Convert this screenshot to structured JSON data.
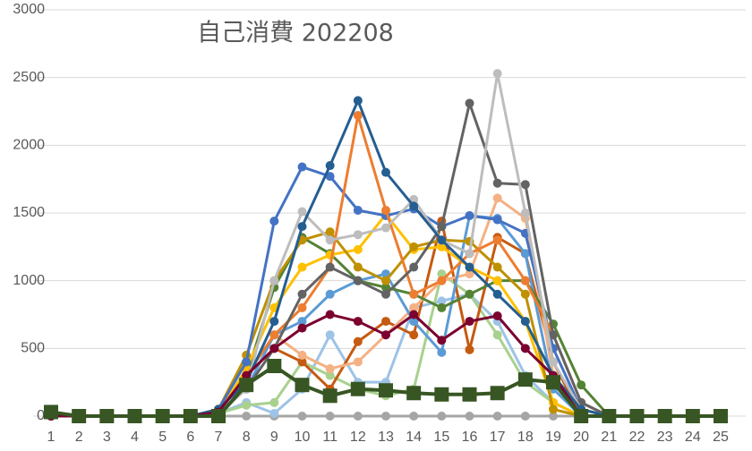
{
  "chart_data": {
    "type": "line",
    "title": "自己消費 202208",
    "x": [
      1,
      2,
      3,
      4,
      5,
      6,
      7,
      8,
      9,
      10,
      11,
      12,
      13,
      14,
      15,
      16,
      17,
      18,
      19,
      20,
      21,
      22,
      23,
      24,
      25
    ],
    "xlim": [
      1,
      25
    ],
    "xticks": [
      1,
      2,
      3,
      4,
      5,
      6,
      7,
      8,
      9,
      10,
      11,
      12,
      13,
      14,
      15,
      16,
      17,
      18,
      19,
      20,
      21,
      22,
      23,
      24,
      25
    ],
    "ylim": [
      0,
      3000
    ],
    "yticks": [
      0,
      500,
      1000,
      1500,
      2000,
      2500,
      3000
    ],
    "grid": true,
    "series": [
      {
        "color": "#a5a5a5",
        "marker": "circle",
        "values": [
          0,
          0,
          0,
          0,
          0,
          0,
          0,
          0,
          0,
          0,
          0,
          0,
          0,
          0,
          0,
          0,
          0,
          0,
          0,
          0,
          null,
          null,
          null,
          null,
          null
        ]
      },
      {
        "color": "#9dc3e6",
        "marker": "circle",
        "values": [
          0,
          0,
          0,
          0,
          0,
          0,
          20,
          100,
          20,
          200,
          600,
          250,
          250,
          800,
          850,
          900,
          700,
          300,
          100,
          0,
          null,
          null,
          null,
          null,
          null
        ]
      },
      {
        "color": "#a9d18e",
        "marker": "circle",
        "values": [
          0,
          0,
          0,
          0,
          0,
          0,
          20,
          80,
          100,
          400,
          300,
          200,
          150,
          200,
          1050,
          900,
          600,
          250,
          100,
          0,
          null,
          null,
          null,
          null,
          null
        ]
      },
      {
        "color": "#c55a11",
        "marker": "circle",
        "values": [
          0,
          0,
          0,
          0,
          0,
          0,
          30,
          300,
          500,
          400,
          200,
          550,
          700,
          600,
          1440,
          490,
          1320,
          1200,
          400,
          0,
          null,
          null,
          null,
          null,
          null
        ]
      },
      {
        "color": "#f4b183",
        "marker": "circle",
        "values": [
          0,
          0,
          0,
          0,
          0,
          0,
          20,
          300,
          600,
          450,
          350,
          400,
          600,
          800,
          1000,
          1050,
          1610,
          1460,
          300,
          0,
          null,
          null,
          null,
          null,
          null
        ]
      },
      {
        "color": "#5b9bd5",
        "marker": "circle",
        "values": [
          0,
          0,
          0,
          0,
          0,
          0,
          30,
          200,
          600,
          700,
          900,
          1000,
          1050,
          700,
          470,
          1480,
          1460,
          1200,
          200,
          0,
          null,
          null,
          null,
          null,
          null
        ]
      },
      {
        "color": "#548235",
        "marker": "circle",
        "values": [
          0,
          0,
          0,
          0,
          0,
          0,
          30,
          300,
          950,
          1320,
          1200,
          1000,
          950,
          900,
          800,
          900,
          1000,
          1000,
          680,
          230,
          0,
          null,
          null,
          null,
          null
        ]
      },
      {
        "color": "#ffc000",
        "marker": "circle",
        "values": [
          0,
          0,
          0,
          0,
          0,
          0,
          20,
          350,
          800,
          1100,
          1190,
          1230,
          1490,
          1230,
          1250,
          1100,
          1000,
          700,
          100,
          0,
          null,
          null,
          null,
          null,
          null
        ]
      },
      {
        "color": "#bf9000",
        "marker": "circle",
        "values": [
          0,
          0,
          0,
          0,
          0,
          0,
          50,
          450,
          1000,
          1300,
          1360,
          1100,
          1000,
          1250,
          1300,
          1290,
          1100,
          900,
          50,
          0,
          null,
          null,
          null,
          null,
          null
        ]
      },
      {
        "color": "#4472c4",
        "marker": "circle",
        "values": [
          0,
          0,
          0,
          0,
          0,
          0,
          50,
          400,
          1440,
          1840,
          1770,
          1520,
          1480,
          1530,
          1400,
          1480,
          1450,
          1350,
          500,
          50,
          0,
          null,
          null,
          null,
          null
        ]
      },
      {
        "color": "#ed7d31",
        "marker": "circle",
        "values": [
          0,
          0,
          0,
          0,
          0,
          0,
          30,
          300,
          600,
          800,
          1100,
          2220,
          1520,
          900,
          1000,
          1200,
          1300,
          1000,
          600,
          100,
          0,
          null,
          null,
          null,
          null
        ]
      },
      {
        "color": "#636363",
        "marker": "circle",
        "values": [
          0,
          0,
          0,
          0,
          0,
          0,
          20,
          200,
          500,
          900,
          1100,
          1000,
          900,
          1100,
          1400,
          2310,
          1720,
          1710,
          600,
          100,
          0,
          null,
          null,
          null,
          null
        ]
      },
      {
        "color": "#bdbdbd",
        "marker": "circle",
        "values": [
          0,
          0,
          0,
          0,
          0,
          0,
          20,
          200,
          1000,
          1510,
          1300,
          1340,
          1390,
          1600,
          1300,
          1200,
          2530,
          1500,
          400,
          50,
          0,
          null,
          null,
          null,
          null
        ]
      },
      {
        "color": "#255e91",
        "marker": "circle",
        "values": [
          0,
          0,
          0,
          0,
          0,
          0,
          50,
          250,
          700,
          1400,
          1850,
          2330,
          1800,
          1550,
          1300,
          1100,
          900,
          700,
          300,
          50,
          0,
          null,
          null,
          null,
          null
        ]
      },
      {
        "color": "#7b0030",
        "marker": "circle",
        "values": [
          0,
          0,
          0,
          0,
          0,
          0,
          30,
          300,
          500,
          650,
          750,
          700,
          600,
          750,
          560,
          700,
          740,
          500,
          300,
          0,
          null,
          null,
          null,
          null,
          null
        ]
      },
      {
        "color": "#375623",
        "marker": "square",
        "values": [
          30,
          0,
          0,
          0,
          0,
          0,
          0,
          230,
          370,
          230,
          150,
          200,
          190,
          170,
          160,
          160,
          170,
          270,
          250,
          0,
          0,
          0,
          0,
          0,
          0
        ]
      }
    ]
  }
}
